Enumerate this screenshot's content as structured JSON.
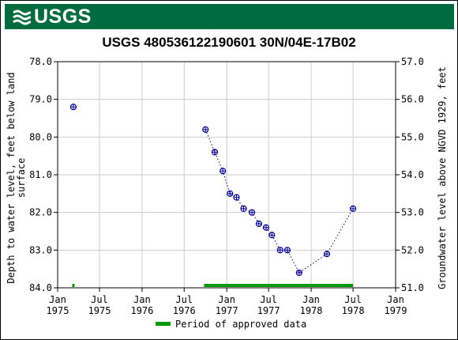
{
  "header": {
    "logo_text": "USGS",
    "brand_color": "#006b3f"
  },
  "chart_data": {
    "type": "scatter",
    "title": "USGS 480536122190601 30N/04E-17B02",
    "ylabel_left": "Depth to water level, feet below land surface",
    "ylabel_right": "Groundwater level above NGVD 1929, feet",
    "y_left_range": [
      78.0,
      84.0
    ],
    "y_left_inverted": true,
    "y_left_ticks": [
      "78.0",
      "79.0",
      "80.0",
      "81.0",
      "82.0",
      "83.0",
      "84.0"
    ],
    "y_right_range": [
      51.0,
      57.0
    ],
    "y_right_ticks": [
      "57.0",
      "56.0",
      "55.0",
      "54.0",
      "53.0",
      "52.0",
      "51.0"
    ],
    "x_range": [
      "1975-01-01",
      "1979-01-01"
    ],
    "x_ticks": [
      {
        "date": "1975-01-01",
        "label": [
          "Jan",
          "1975"
        ]
      },
      {
        "date": "1975-07-01",
        "label": [
          "Jul",
          "1975"
        ]
      },
      {
        "date": "1976-01-01",
        "label": [
          "Jan",
          "1976"
        ]
      },
      {
        "date": "1976-07-01",
        "label": [
          "Jul",
          "1976"
        ]
      },
      {
        "date": "1977-01-01",
        "label": [
          "Jan",
          "1977"
        ]
      },
      {
        "date": "1977-07-01",
        "label": [
          "Jul",
          "1977"
        ]
      },
      {
        "date": "1978-01-01",
        "label": [
          "Jan",
          "1978"
        ]
      },
      {
        "date": "1978-07-01",
        "label": [
          "Jul",
          "1978"
        ]
      },
      {
        "date": "1979-01-01",
        "label": [
          "Jan",
          "1979"
        ]
      }
    ],
    "grid": true,
    "marker_color": "#00008b",
    "points": [
      {
        "date": "1975-03-10",
        "y": 79.2,
        "connected": false
      },
      {
        "date": "1976-10-01",
        "y": 79.8,
        "connected": true
      },
      {
        "date": "1976-11-10",
        "y": 80.4,
        "connected": true
      },
      {
        "date": "1976-12-15",
        "y": 80.9,
        "connected": true
      },
      {
        "date": "1977-01-15",
        "y": 81.5,
        "connected": true
      },
      {
        "date": "1977-02-12",
        "y": 81.6,
        "connected": true
      },
      {
        "date": "1977-03-15",
        "y": 81.9,
        "connected": true
      },
      {
        "date": "1977-04-20",
        "y": 82.0,
        "connected": true
      },
      {
        "date": "1977-05-20",
        "y": 82.3,
        "connected": true
      },
      {
        "date": "1977-06-20",
        "y": 82.4,
        "connected": true
      },
      {
        "date": "1977-07-15",
        "y": 82.6,
        "connected": true
      },
      {
        "date": "1977-08-20",
        "y": 83.0,
        "connected": true
      },
      {
        "date": "1977-09-20",
        "y": 83.0,
        "connected": true
      },
      {
        "date": "1977-11-10",
        "y": 83.6,
        "connected": true
      },
      {
        "date": "1978-03-10",
        "y": 83.1,
        "connected": true
      },
      {
        "date": "1978-07-01",
        "y": 81.9,
        "connected": true
      }
    ],
    "approved_periods": [
      {
        "start": "1975-03-05",
        "end": "1975-03-15"
      },
      {
        "start": "1976-09-25",
        "end": "1978-07-01"
      }
    ],
    "approved_color": "#009900",
    "legend": {
      "label": "Period of approved data",
      "placement": "bottom-center"
    }
  }
}
